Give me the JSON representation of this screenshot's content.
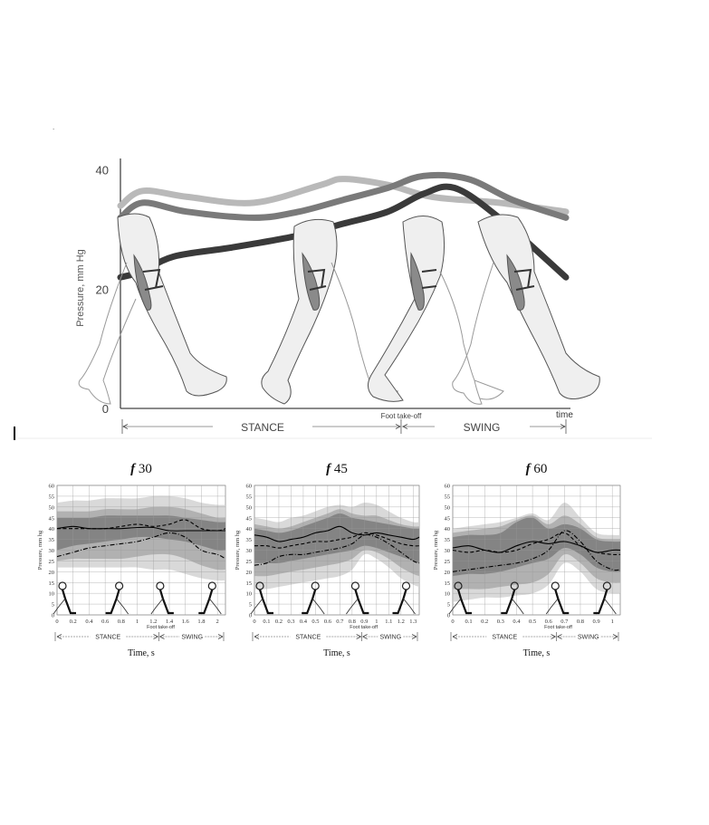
{
  "figure_marker": ".",
  "colors": {
    "curve_light": "#b9b9b9",
    "curve_mid": "#7a7a7a",
    "curve_dark": "#3a3a3a",
    "band_dark": "#7d7d7d",
    "band_mid": "#a9a9a9",
    "band_light": "#d2d2d2",
    "grid": "#9a9a9a",
    "leg_fill": "#eeeeee",
    "leg_stroke": "#555555"
  },
  "chart_data": [
    {
      "type": "line",
      "ylabel": "Pressure, mm Hg",
      "xlabel": "time",
      "y_ticks": [
        0,
        20,
        40
      ],
      "ylim": [
        0,
        43
      ],
      "xlim": [
        0,
        1
      ],
      "phase_labels": {
        "stance": "STANCE",
        "swing": "SWING",
        "takeoff": "Foot take-off"
      },
      "takeoff_x": 0.63,
      "series": [
        {
          "color_key": "curve_light",
          "x": [
            0,
            0.05,
            0.15,
            0.3,
            0.45,
            0.5,
            0.6,
            0.7,
            0.85,
            1.0
          ],
          "values": [
            34,
            36.5,
            35.5,
            34.5,
            37.5,
            38.5,
            37.5,
            35.5,
            34.5,
            33
          ]
        },
        {
          "color_key": "curve_mid",
          "x": [
            0,
            0.05,
            0.15,
            0.3,
            0.4,
            0.5,
            0.6,
            0.68,
            0.78,
            0.88,
            1.0
          ],
          "values": [
            32,
            34.5,
            33,
            32,
            33,
            35,
            37,
            39,
            38.5,
            35,
            32
          ]
        },
        {
          "color_key": "curve_dark",
          "x": [
            0,
            0.05,
            0.12,
            0.25,
            0.4,
            0.5,
            0.6,
            0.68,
            0.75,
            0.85,
            1.0
          ],
          "values": [
            22,
            23,
            25.5,
            27,
            29,
            31,
            33,
            36,
            37,
            32,
            22
          ]
        }
      ]
    },
    {
      "type": "line",
      "title_italic": "f",
      "title": "30",
      "xlabel": "Time, s",
      "ylabel": "Pressure, mm hg",
      "x_ticks": [
        "0",
        "0.2",
        "0.4",
        "0.6",
        "0.8",
        "1",
        "1.2",
        "1.4",
        "1.6",
        "1.8",
        "2"
      ],
      "y_ticks": [
        "0",
        "5",
        "10",
        "15",
        "20",
        "25",
        "30",
        "35",
        "40",
        "45",
        "50",
        "55",
        "60"
      ],
      "xlim": [
        0,
        2.1
      ],
      "ylim": [
        0,
        60
      ],
      "takeoff_x": 1.27,
      "phase_labels": {
        "stance": "STANCE",
        "swing": "SWING",
        "takeoff": "Foot take-off"
      },
      "x": [
        0,
        0.2,
        0.4,
        0.6,
        0.8,
        1.0,
        1.2,
        1.4,
        1.6,
        1.8,
        2.0,
        2.1
      ],
      "series": [
        {
          "style": "solid",
          "values": [
            40,
            41,
            40,
            40,
            40,
            40.5,
            40.5,
            39,
            39,
            39,
            39,
            39
          ]
        },
        {
          "style": "dashed",
          "values": [
            40,
            40,
            40,
            40,
            41,
            42,
            41,
            42,
            44,
            40,
            39,
            40
          ]
        },
        {
          "style": "dashdot",
          "values": [
            27,
            29,
            31,
            32,
            33,
            34,
            36,
            38,
            36,
            30,
            28,
            26
          ]
        }
      ],
      "bands": [
        {
          "level": "light",
          "upper": [
            52,
            53,
            53,
            54,
            54,
            54,
            55,
            55,
            54,
            52,
            51,
            51
          ],
          "lower": [
            22,
            22,
            22,
            22,
            22,
            22,
            21,
            21,
            19,
            17,
            16,
            16
          ]
        },
        {
          "level": "mid",
          "upper": [
            48,
            48,
            48,
            49,
            49,
            49,
            50,
            50,
            49,
            47,
            45,
            45
          ],
          "lower": [
            25,
            26,
            26,
            26,
            26,
            27,
            28,
            28,
            26,
            23,
            21,
            21
          ]
        },
        {
          "level": "dark",
          "upper": [
            45,
            45,
            45,
            46,
            46,
            46,
            46,
            46,
            45,
            44,
            43,
            43
          ],
          "lower": [
            30,
            32,
            33,
            34,
            35,
            36,
            36,
            35,
            34,
            32,
            30,
            30
          ]
        }
      ]
    },
    {
      "type": "line",
      "title_italic": "f",
      "title": "45",
      "xlabel": "Time, s",
      "ylabel": "Pressure, mm hg",
      "x_ticks": [
        "0",
        "0.1",
        "0.2",
        "0.3",
        "0.4",
        "0.5",
        "0.6",
        "0.7",
        "0.8",
        "0.9",
        "1",
        "1.1",
        "1.2",
        "1.3"
      ],
      "y_ticks": [
        "0",
        "5",
        "10",
        "15",
        "20",
        "25",
        "30",
        "35",
        "40",
        "45",
        "50",
        "55",
        "60"
      ],
      "xlim": [
        0,
        1.35
      ],
      "ylim": [
        0,
        60
      ],
      "takeoff_x": 0.88,
      "phase_labels": {
        "stance": "STANCE",
        "swing": "SWING",
        "takeoff": "Foot take-off"
      },
      "x": [
        0,
        0.1,
        0.2,
        0.3,
        0.4,
        0.5,
        0.6,
        0.7,
        0.8,
        0.9,
        1.0,
        1.1,
        1.2,
        1.3,
        1.35
      ],
      "series": [
        {
          "style": "solid",
          "values": [
            37,
            36,
            34,
            35,
            36,
            38,
            39,
            41,
            38,
            37,
            38,
            37,
            36,
            35,
            36
          ]
        },
        {
          "style": "dashed",
          "values": [
            32,
            32,
            31,
            32,
            33,
            34,
            34,
            35,
            36,
            38,
            37,
            35,
            33,
            32,
            32
          ]
        },
        {
          "style": "dashdot",
          "values": [
            23,
            24,
            27,
            28,
            28,
            29,
            30,
            31,
            33,
            37,
            36,
            33,
            29,
            25,
            24
          ]
        }
      ],
      "bands": [
        {
          "level": "light",
          "upper": [
            45,
            44,
            43,
            45,
            46,
            48,
            50,
            51,
            50,
            52,
            51,
            48,
            45,
            43,
            43
          ],
          "lower": [
            12,
            12,
            13,
            14,
            15,
            16,
            17,
            18,
            21,
            28,
            26,
            22,
            17,
            14,
            13
          ]
        },
        {
          "level": "mid",
          "upper": [
            42,
            41,
            40,
            41,
            43,
            45,
            47,
            49,
            47,
            46,
            46,
            44,
            42,
            41,
            41
          ],
          "lower": [
            18,
            18,
            19,
            20,
            21,
            22,
            23,
            24,
            26,
            30,
            29,
            26,
            22,
            19,
            18
          ]
        },
        {
          "level": "dark",
          "upper": [
            40,
            39,
            38,
            39,
            41,
            43,
            45,
            47,
            45,
            44,
            43,
            42,
            41,
            40,
            40
          ],
          "lower": [
            24,
            24,
            24,
            25,
            26,
            27,
            28,
            29,
            30,
            32,
            31,
            29,
            27,
            25,
            24
          ]
        }
      ]
    },
    {
      "type": "line",
      "title_italic": "f",
      "title": "60",
      "xlabel": "Time, s",
      "ylabel": "Pressure, mm hg",
      "x_ticks": [
        "0",
        "0.1",
        "0.2",
        "0.3",
        "0.4",
        "0.5",
        "0.6",
        "0.7",
        "0.8",
        "0.9",
        "1"
      ],
      "y_ticks": [
        "0",
        "5",
        "10",
        "15",
        "20",
        "25",
        "30",
        "35",
        "40",
        "45",
        "50",
        "55",
        "60"
      ],
      "xlim": [
        0,
        1.05
      ],
      "ylim": [
        0,
        60
      ],
      "takeoff_x": 0.65,
      "phase_labels": {
        "stance": "STANCE",
        "swing": "SWING",
        "takeoff": "Foot take-off"
      },
      "x": [
        0,
        0.1,
        0.2,
        0.3,
        0.4,
        0.5,
        0.6,
        0.7,
        0.8,
        0.9,
        1.0,
        1.05
      ],
      "series": [
        {
          "style": "solid",
          "values": [
            31,
            32,
            30,
            29,
            32,
            34,
            33,
            34,
            32,
            29,
            30,
            30
          ]
        },
        {
          "style": "dashed",
          "values": [
            30,
            29,
            30,
            29,
            30,
            33,
            35,
            38,
            32,
            29,
            28,
            28
          ]
        },
        {
          "style": "dashdot",
          "values": [
            20,
            21,
            22,
            23,
            24,
            26,
            30,
            39,
            34,
            25,
            21,
            21
          ]
        }
      ],
      "bands": [
        {
          "level": "light",
          "upper": [
            40,
            41,
            42,
            43,
            45,
            47,
            44,
            52,
            45,
            38,
            37,
            37
          ],
          "lower": [
            6,
            7,
            8,
            8,
            9,
            10,
            14,
            24,
            20,
            12,
            10,
            10
          ]
        },
        {
          "level": "mid",
          "upper": [
            38,
            39,
            40,
            41,
            44,
            46,
            42,
            46,
            42,
            36,
            35,
            35
          ],
          "lower": [
            12,
            12,
            12,
            13,
            14,
            15,
            19,
            28,
            24,
            17,
            15,
            15
          ]
        },
        {
          "level": "dark",
          "upper": [
            36,
            37,
            37,
            38,
            43,
            45,
            40,
            42,
            40,
            35,
            34,
            34
          ],
          "lower": [
            18,
            19,
            19,
            20,
            22,
            24,
            26,
            31,
            28,
            22,
            20,
            20
          ]
        }
      ]
    }
  ]
}
